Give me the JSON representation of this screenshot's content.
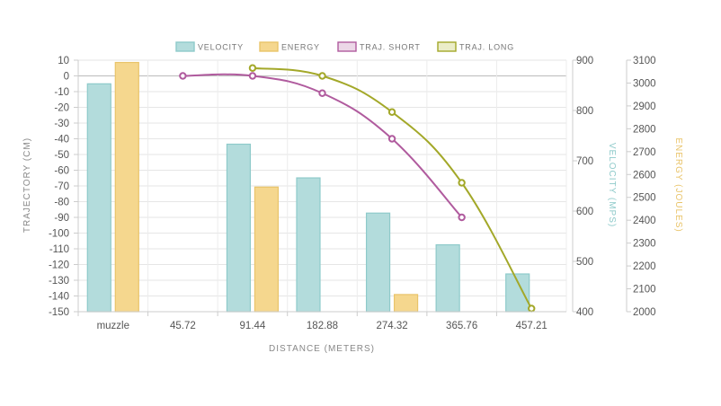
{
  "chart_data": {
    "type": "bar",
    "categories": [
      "muzzle",
      "45.72",
      "91.44",
      "182.88",
      "274.32",
      "365.76",
      "457.21"
    ],
    "xlabel": "DISTANCE (METERS)",
    "axes": {
      "trajectory": {
        "label": "TRAJECTORY (CM)",
        "range": [
          -150,
          10
        ],
        "ticks": [
          10,
          0,
          -10,
          -20,
          -30,
          -40,
          -50,
          -60,
          -70,
          -80,
          -90,
          -100,
          -110,
          -120,
          -130,
          -140,
          -150
        ],
        "position": "left"
      },
      "velocity": {
        "label": "VELOCITY (MPS)",
        "range": [
          400,
          900
        ],
        "ticks": [
          900,
          800,
          700,
          600,
          500,
          400
        ],
        "position": "right",
        "color": "#8ecaca"
      },
      "energy": {
        "label": "ENERGY (JOULES)",
        "range": [
          2000,
          3100
        ],
        "ticks": [
          3100,
          3000,
          2900,
          2800,
          2700,
          2600,
          2500,
          2400,
          2300,
          2200,
          2100,
          2000
        ],
        "position": "right",
        "color": "#e9c46a"
      }
    },
    "series": [
      {
        "name": "VELOCITY",
        "kind": "bar",
        "axis": "velocity",
        "color": "#b3dcdc",
        "stroke": "#8ecaca",
        "values": [
          853,
          null,
          733,
          666,
          596,
          533,
          475
        ]
      },
      {
        "name": "ENERGY",
        "kind": "bar",
        "axis": "energy",
        "color": "#f5d78e",
        "stroke": "#e9c46a",
        "values": [
          3090,
          null,
          2545,
          null,
          2075,
          null,
          null
        ]
      },
      {
        "name": "TRAJ. SHORT",
        "kind": "line",
        "axis": "trajectory",
        "color": "#b05b9e",
        "values": [
          null,
          0,
          0,
          -11,
          -40,
          -90,
          null
        ]
      },
      {
        "name": "TRAJ. LONG",
        "kind": "line",
        "axis": "trajectory",
        "color": "#a3a829",
        "values": [
          null,
          null,
          5,
          0,
          -23,
          -68,
          -148
        ]
      }
    ],
    "grid": true,
    "legend": "top"
  }
}
